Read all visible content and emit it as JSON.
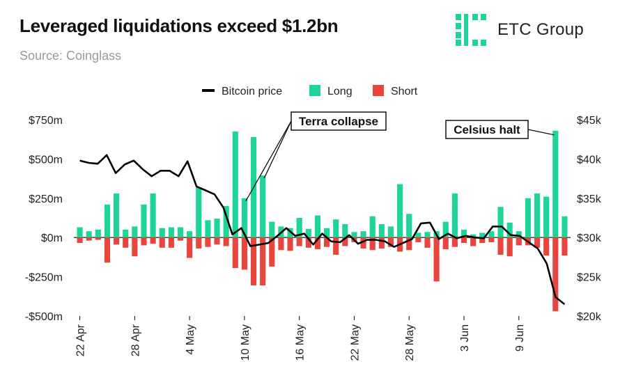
{
  "header": {
    "title": "Leveraged liquidations exceed $1.2bn",
    "source": "Source: Coinglass",
    "logo_text": "ETC Group"
  },
  "colors": {
    "long": "#1ed49b",
    "short": "#e8453c",
    "price": "#000000",
    "logo": "#1ed49b"
  },
  "chart_data": {
    "type": "bar",
    "legend": [
      "Bitcoin price",
      "Long",
      "Short"
    ],
    "legend_position": "top-center",
    "x_ticks": [
      {
        "index": 0,
        "label": "22 Apr"
      },
      {
        "index": 6,
        "label": "28 Apr"
      },
      {
        "index": 12,
        "label": "4 May"
      },
      {
        "index": 18,
        "label": "10 May"
      },
      {
        "index": 24,
        "label": "16 May"
      },
      {
        "index": 30,
        "label": "22 May"
      },
      {
        "index": 36,
        "label": "28 May"
      },
      {
        "index": 42,
        "label": "3 Jun"
      },
      {
        "index": 48,
        "label": "9 Jun"
      }
    ],
    "left_axis": {
      "ylim": [
        -500,
        750
      ],
      "ticks": [
        750,
        500,
        250,
        0,
        -250,
        -500
      ],
      "labels": [
        "$750m",
        "$500m",
        "$250m",
        "$0m",
        "-$250m",
        "-$500m"
      ]
    },
    "right_axis": {
      "ylim": [
        20000,
        45000
      ],
      "ticks": [
        45000,
        40000,
        35000,
        30000,
        25000,
        20000
      ],
      "labels": [
        "$45k",
        "$40k",
        "$35k",
        "$30k",
        "$25k",
        "$20k"
      ]
    },
    "long_values": [
      65,
      40,
      50,
      210,
      280,
      50,
      70,
      210,
      280,
      60,
      65,
      65,
      40,
      320,
      110,
      120,
      200,
      675,
      250,
      640,
      395,
      100,
      70,
      60,
      125,
      55,
      140,
      60,
      115,
      85,
      35,
      40,
      135,
      85,
      70,
      340,
      150,
      30,
      35,
      40,
      100,
      280,
      50,
      20,
      30,
      40,
      195,
      95,
      40,
      250,
      280,
      260,
      680,
      135
    ],
    "short_values": [
      -35,
      -20,
      -15,
      -160,
      -45,
      -65,
      -120,
      -50,
      -40,
      -65,
      -65,
      -20,
      -130,
      -70,
      -60,
      -45,
      -55,
      -195,
      -205,
      -305,
      -305,
      -185,
      -80,
      -85,
      -55,
      -65,
      -75,
      -60,
      -110,
      -55,
      -30,
      -70,
      -80,
      -70,
      -60,
      -90,
      -80,
      -30,
      -65,
      -280,
      -75,
      -60,
      -35,
      -55,
      -35,
      -30,
      -110,
      -120,
      -50,
      -50,
      -65,
      -115,
      -470,
      -115
    ],
    "price_values": [
      39800,
      39500,
      39400,
      40500,
      38200,
      39300,
      39800,
      38700,
      37800,
      38500,
      38500,
      37800,
      39700,
      36500,
      36000,
      35500,
      33800,
      30400,
      31200,
      28900,
      29100,
      29300,
      30200,
      31200,
      30200,
      30500,
      29100,
      30500,
      29500,
      29400,
      30300,
      29200,
      29700,
      29700,
      29500,
      28800,
      29300,
      29800,
      31800,
      31900,
      29800,
      30500,
      29900,
      30200,
      30000,
      29900,
      31400,
      31400,
      30300,
      30200,
      29400,
      28600,
      26700,
      22400,
      21500
    ],
    "annotations": [
      {
        "text": "Terra collapse",
        "target_indices": [
          18,
          20
        ]
      },
      {
        "text": "Celsius halt",
        "target_indices": [
          52
        ]
      }
    ]
  }
}
